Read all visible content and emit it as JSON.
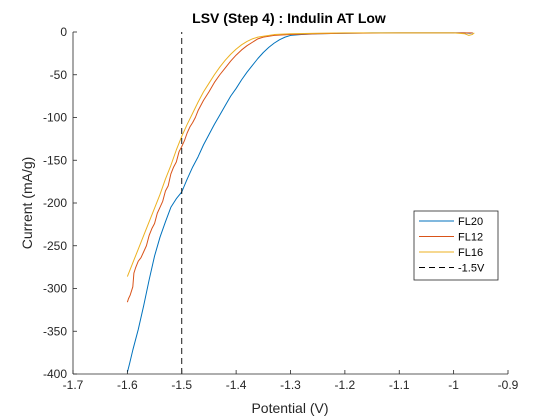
{
  "chart_data": {
    "type": "line",
    "title": "LSV (Step 4) : Indulin AT Low",
    "xlabel": "Potential (V)",
    "ylabel": "Current (mA/g)",
    "xlim": [
      -1.7,
      -0.9
    ],
    "ylim": [
      -400,
      0
    ],
    "xticks": [
      -1.7,
      -1.6,
      -1.5,
      -1.4,
      -1.3,
      -1.2,
      -1.1,
      -1.0,
      -0.9
    ],
    "xtick_labels": [
      "-1.7",
      "-1.6",
      "-1.5",
      "-1.4",
      "-1.3",
      "-1.2",
      "-1.1",
      "-1",
      "-0.9"
    ],
    "yticks": [
      -400,
      -350,
      -300,
      -250,
      -200,
      -150,
      -100,
      -50,
      0
    ],
    "ytick_labels": [
      "-400",
      "-350",
      "-300",
      "-250",
      "-200",
      "-150",
      "-100",
      "-50",
      "0"
    ],
    "grid": false,
    "legend_position": "right",
    "series": [
      {
        "name": "FL20",
        "color": "#0072BD",
        "style": "solid",
        "points": [
          [
            -1.6,
            -398
          ],
          [
            -1.596,
            -388
          ],
          [
            -1.59,
            -372
          ],
          [
            -1.58,
            -348
          ],
          [
            -1.57,
            -320
          ],
          [
            -1.56,
            -290
          ],
          [
            -1.55,
            -262
          ],
          [
            -1.54,
            -240
          ],
          [
            -1.53,
            -222
          ],
          [
            -1.52,
            -205
          ],
          [
            -1.51,
            -195
          ],
          [
            -1.5,
            -187
          ],
          [
            -1.49,
            -172
          ],
          [
            -1.48,
            -158
          ],
          [
            -1.47,
            -146
          ],
          [
            -1.46,
            -132
          ],
          [
            -1.45,
            -120
          ],
          [
            -1.44,
            -108
          ],
          [
            -1.43,
            -97
          ],
          [
            -1.42,
            -86
          ],
          [
            -1.41,
            -75
          ],
          [
            -1.4,
            -66
          ],
          [
            -1.39,
            -56
          ],
          [
            -1.38,
            -47
          ],
          [
            -1.37,
            -39
          ],
          [
            -1.36,
            -31
          ],
          [
            -1.35,
            -24
          ],
          [
            -1.34,
            -18
          ],
          [
            -1.33,
            -13
          ],
          [
            -1.32,
            -9
          ],
          [
            -1.31,
            -6
          ],
          [
            -1.3,
            -4
          ],
          [
            -1.28,
            -3
          ],
          [
            -1.25,
            -2
          ],
          [
            -1.2,
            -1.5
          ],
          [
            -1.15,
            -1
          ],
          [
            -1.1,
            -1
          ],
          [
            -1.05,
            -1
          ],
          [
            -1.0,
            -1
          ],
          [
            -0.98,
            -1
          ],
          [
            -0.97,
            -1.5
          ],
          [
            -0.965,
            -1
          ]
        ]
      },
      {
        "name": "FL12",
        "color": "#D95319",
        "style": "solid",
        "points": [
          [
            -1.6,
            -316
          ],
          [
            -1.598,
            -312
          ],
          [
            -1.595,
            -308
          ],
          [
            -1.59,
            -298
          ],
          [
            -1.588,
            -282
          ],
          [
            -1.585,
            -276
          ],
          [
            -1.58,
            -268
          ],
          [
            -1.575,
            -264
          ],
          [
            -1.57,
            -257
          ],
          [
            -1.565,
            -250
          ],
          [
            -1.56,
            -238
          ],
          [
            -1.555,
            -230
          ],
          [
            -1.55,
            -224
          ],
          [
            -1.545,
            -212
          ],
          [
            -1.54,
            -205
          ],
          [
            -1.535,
            -198
          ],
          [
            -1.53,
            -186
          ],
          [
            -1.525,
            -180
          ],
          [
            -1.52,
            -166
          ],
          [
            -1.515,
            -158
          ],
          [
            -1.51,
            -152
          ],
          [
            -1.505,
            -140
          ],
          [
            -1.5,
            -134
          ],
          [
            -1.495,
            -127
          ],
          [
            -1.49,
            -118
          ],
          [
            -1.485,
            -111
          ],
          [
            -1.48,
            -106
          ],
          [
            -1.475,
            -100
          ],
          [
            -1.47,
            -92
          ],
          [
            -1.46,
            -80
          ],
          [
            -1.45,
            -70
          ],
          [
            -1.44,
            -59
          ],
          [
            -1.43,
            -50
          ],
          [
            -1.42,
            -42
          ],
          [
            -1.41,
            -34
          ],
          [
            -1.4,
            -27
          ],
          [
            -1.39,
            -21
          ],
          [
            -1.38,
            -16
          ],
          [
            -1.37,
            -12
          ],
          [
            -1.36,
            -8
          ],
          [
            -1.35,
            -6
          ],
          [
            -1.33,
            -4
          ],
          [
            -1.3,
            -3
          ],
          [
            -1.25,
            -2
          ],
          [
            -1.2,
            -1.5
          ],
          [
            -1.1,
            -1
          ],
          [
            -1.0,
            -1
          ],
          [
            -0.97,
            -1
          ],
          [
            -0.965,
            -1
          ]
        ]
      },
      {
        "name": "FL16",
        "color": "#EDB120",
        "style": "solid",
        "points": [
          [
            -1.6,
            -286
          ],
          [
            -1.59,
            -270
          ],
          [
            -1.58,
            -254
          ],
          [
            -1.57,
            -238
          ],
          [
            -1.56,
            -222
          ],
          [
            -1.55,
            -206
          ],
          [
            -1.54,
            -190
          ],
          [
            -1.53,
            -172
          ],
          [
            -1.52,
            -156
          ],
          [
            -1.51,
            -138
          ],
          [
            -1.5,
            -122
          ],
          [
            -1.49,
            -108
          ],
          [
            -1.48,
            -95
          ],
          [
            -1.47,
            -82
          ],
          [
            -1.46,
            -70
          ],
          [
            -1.45,
            -60
          ],
          [
            -1.44,
            -50
          ],
          [
            -1.43,
            -41
          ],
          [
            -1.42,
            -33
          ],
          [
            -1.41,
            -26
          ],
          [
            -1.4,
            -20
          ],
          [
            -1.39,
            -15
          ],
          [
            -1.38,
            -11
          ],
          [
            -1.37,
            -8
          ],
          [
            -1.36,
            -6
          ],
          [
            -1.35,
            -5
          ],
          [
            -1.33,
            -3
          ],
          [
            -1.3,
            -2
          ],
          [
            -1.25,
            -1.5
          ],
          [
            -1.2,
            -1
          ],
          [
            -1.1,
            -1
          ],
          [
            -1.0,
            -1
          ],
          [
            -0.98,
            -2
          ],
          [
            -0.972,
            -4
          ],
          [
            -0.966,
            -3
          ],
          [
            -0.962,
            -1
          ]
        ]
      },
      {
        "name": "-1.5V",
        "color": "#000000",
        "style": "dashed",
        "points": [
          [
            -1.5,
            -400
          ],
          [
            -1.5,
            0
          ]
        ]
      }
    ]
  }
}
